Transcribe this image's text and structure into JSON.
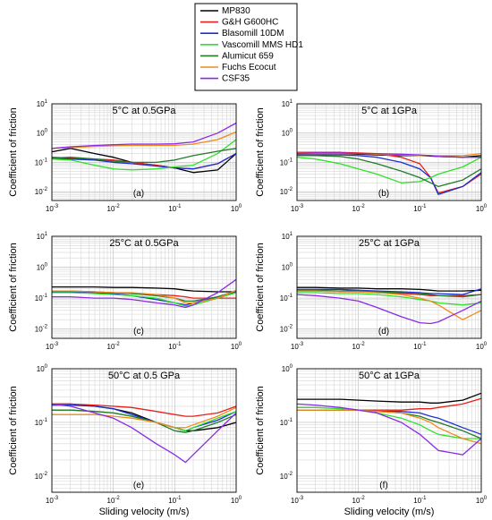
{
  "legend": {
    "placement": "top-center",
    "entries": [
      {
        "name": "MP830",
        "color": "#000000"
      },
      {
        "name": "G&H G600HC",
        "color": "#e8201b"
      },
      {
        "name": "Blasomill 10DM",
        "color": "#1a2fd0"
      },
      {
        "name": "Vascomill MMS HD1",
        "color": "#2fe02a"
      },
      {
        "name": "Alumicut 659",
        "color": "#237a2a"
      },
      {
        "name": "Fuchs Ecocut",
        "color": "#f08a1e"
      },
      {
        "name": "CSF35",
        "color": "#8a2ae6"
      }
    ]
  },
  "labels": {
    "ylabel": "Coefficient of friction",
    "xlabel": "Sliding velocity (m/s)"
  },
  "chart_data": [
    {
      "type": "line",
      "panel": "(a)",
      "title": "5°C at 0.5GPa",
      "xscale": "log",
      "yscale": "log",
      "xlim": [
        0.001,
        1
      ],
      "ylim": [
        0.005,
        10
      ],
      "grid": true,
      "x": [
        0.001,
        0.002,
        0.005,
        0.01,
        0.02,
        0.05,
        0.1,
        0.2,
        0.5,
        1
      ],
      "series": [
        {
          "name": "MP830",
          "values": [
            0.23,
            0.3,
            0.2,
            0.15,
            0.1,
            0.08,
            0.065,
            0.045,
            0.055,
            0.2
          ]
        },
        {
          "name": "G&H G600HC",
          "values": [
            0.15,
            0.14,
            0.13,
            0.12,
            0.1,
            0.08,
            0.065,
            0.06,
            0.09,
            0.2
          ]
        },
        {
          "name": "Blasomill 10DM",
          "values": [
            0.14,
            0.13,
            0.12,
            0.1,
            0.09,
            0.075,
            0.065,
            0.06,
            0.09,
            0.2
          ]
        },
        {
          "name": "Vascomill MMS HD1",
          "values": [
            0.13,
            0.12,
            0.08,
            0.06,
            0.055,
            0.06,
            0.07,
            0.08,
            0.2,
            0.6
          ]
        },
        {
          "name": "Alumicut 659",
          "values": [
            0.14,
            0.15,
            0.13,
            0.11,
            0.1,
            0.1,
            0.12,
            0.17,
            0.24,
            0.3
          ]
        },
        {
          "name": "Fuchs Ecocut",
          "values": [
            0.3,
            0.32,
            0.35,
            0.37,
            0.38,
            0.38,
            0.38,
            0.42,
            0.6,
            1.1
          ]
        },
        {
          "name": "CSF35",
          "values": [
            0.3,
            0.34,
            0.38,
            0.4,
            0.42,
            0.42,
            0.43,
            0.5,
            1.0,
            2.2
          ]
        }
      ]
    },
    {
      "type": "line",
      "panel": "(b)",
      "title": "5°C at 1GPa",
      "xscale": "log",
      "yscale": "log",
      "xlim": [
        0.001,
        1
      ],
      "ylim": [
        0.005,
        10
      ],
      "grid": true,
      "x": [
        0.001,
        0.002,
        0.005,
        0.01,
        0.02,
        0.05,
        0.1,
        0.15,
        0.2,
        0.5,
        1
      ],
      "series": [
        {
          "name": "MP830",
          "values": [
            0.2,
            0.2,
            0.2,
            0.19,
            0.18,
            0.17,
            0.17,
            0.165,
            0.16,
            0.15,
            0.17
          ]
        },
        {
          "name": "G&H G600HC",
          "values": [
            0.22,
            0.22,
            0.22,
            0.21,
            0.2,
            0.15,
            0.09,
            0.03,
            0.009,
            0.015,
            0.04
          ]
        },
        {
          "name": "Blasomill 10DM",
          "values": [
            0.18,
            0.18,
            0.18,
            0.17,
            0.15,
            0.1,
            0.06,
            0.03,
            0.008,
            0.015,
            0.045
          ]
        },
        {
          "name": "Vascomill MMS HD1",
          "values": [
            0.15,
            0.13,
            0.09,
            0.06,
            0.04,
            0.02,
            0.022,
            0.03,
            0.04,
            0.07,
            0.15
          ]
        },
        {
          "name": "Alumicut 659",
          "values": [
            0.17,
            0.17,
            0.16,
            0.13,
            0.09,
            0.05,
            0.03,
            0.02,
            0.015,
            0.025,
            0.06
          ]
        },
        {
          "name": "Fuchs Ecocut",
          "values": [
            0.2,
            0.2,
            0.2,
            0.2,
            0.19,
            0.18,
            0.17,
            0.17,
            0.17,
            0.17,
            0.2
          ]
        },
        {
          "name": "CSF35",
          "values": [
            0.2,
            0.21,
            0.21,
            0.2,
            0.2,
            0.19,
            0.18,
            0.17,
            0.16,
            0.15,
            0.15
          ]
        }
      ]
    },
    {
      "type": "line",
      "panel": "(c)",
      "title": "25°C at 0.5GPa",
      "xscale": "log",
      "yscale": "log",
      "xlim": [
        0.001,
        1
      ],
      "ylim": [
        0.005,
        10
      ],
      "grid": true,
      "x": [
        0.001,
        0.002,
        0.005,
        0.01,
        0.02,
        0.05,
        0.1,
        0.15,
        0.2,
        0.5,
        1
      ],
      "series": [
        {
          "name": "MP830",
          "values": [
            0.23,
            0.23,
            0.23,
            0.22,
            0.22,
            0.21,
            0.2,
            0.18,
            0.17,
            0.16,
            0.16
          ]
        },
        {
          "name": "G&H G600HC",
          "values": [
            0.16,
            0.16,
            0.15,
            0.15,
            0.14,
            0.13,
            0.12,
            0.11,
            0.1,
            0.1,
            0.1
          ]
        },
        {
          "name": "Blasomill 10DM",
          "values": [
            0.16,
            0.16,
            0.15,
            0.14,
            0.12,
            0.09,
            0.07,
            0.06,
            0.07,
            0.11,
            0.16
          ]
        },
        {
          "name": "Vascomill MMS HD1",
          "values": [
            0.15,
            0.15,
            0.14,
            0.13,
            0.12,
            0.1,
            0.07,
            0.055,
            0.06,
            0.1,
            0.15
          ]
        },
        {
          "name": "Alumicut 659",
          "values": [
            0.17,
            0.17,
            0.16,
            0.15,
            0.14,
            0.12,
            0.1,
            0.08,
            0.08,
            0.11,
            0.17
          ]
        },
        {
          "name": "Fuchs Ecocut",
          "values": [
            0.17,
            0.17,
            0.16,
            0.15,
            0.15,
            0.13,
            0.1,
            0.07,
            0.07,
            0.1,
            0.18
          ]
        },
        {
          "name": "CSF35",
          "values": [
            0.11,
            0.11,
            0.1,
            0.1,
            0.09,
            0.07,
            0.06,
            0.05,
            0.06,
            0.15,
            0.4
          ]
        }
      ]
    },
    {
      "type": "line",
      "panel": "(d)",
      "title": "25°C at 1GPa",
      "xscale": "log",
      "yscale": "log",
      "xlim": [
        0.001,
        1
      ],
      "ylim": [
        0.005,
        10
      ],
      "grid": true,
      "x": [
        0.001,
        0.002,
        0.005,
        0.01,
        0.02,
        0.05,
        0.1,
        0.15,
        0.2,
        0.5,
        1
      ],
      "series": [
        {
          "name": "MP830",
          "values": [
            0.22,
            0.22,
            0.21,
            0.21,
            0.2,
            0.2,
            0.19,
            0.18,
            0.17,
            0.17,
            0.18
          ]
        },
        {
          "name": "G&H G600HC",
          "values": [
            0.17,
            0.17,
            0.16,
            0.16,
            0.15,
            0.14,
            0.13,
            0.12,
            0.12,
            0.12,
            0.13
          ]
        },
        {
          "name": "Blasomill 10DM",
          "values": [
            0.19,
            0.19,
            0.19,
            0.18,
            0.17,
            0.16,
            0.15,
            0.14,
            0.14,
            0.13,
            0.2
          ]
        },
        {
          "name": "Vascomill MMS HD1",
          "values": [
            0.15,
            0.15,
            0.14,
            0.14,
            0.13,
            0.11,
            0.09,
            0.08,
            0.07,
            0.06,
            0.07
          ]
        },
        {
          "name": "Alumicut 659",
          "values": [
            0.18,
            0.18,
            0.17,
            0.17,
            0.16,
            0.15,
            0.14,
            0.13,
            0.12,
            0.11,
            0.13
          ]
        },
        {
          "name": "Fuchs Ecocut",
          "values": [
            0.17,
            0.17,
            0.16,
            0.16,
            0.15,
            0.13,
            0.1,
            0.08,
            0.06,
            0.02,
            0.04
          ]
        },
        {
          "name": "CSF35",
          "values": [
            0.13,
            0.12,
            0.1,
            0.08,
            0.05,
            0.025,
            0.016,
            0.015,
            0.017,
            0.04,
            0.08
          ]
        }
      ]
    },
    {
      "type": "line",
      "panel": "(e)",
      "title": "50°C at 0.5 GPa",
      "xscale": "log",
      "yscale": "log",
      "xlim": [
        0.001,
        1
      ],
      "ylim": [
        0.005,
        1
      ],
      "grid": true,
      "x": [
        0.001,
        0.002,
        0.005,
        0.01,
        0.02,
        0.05,
        0.1,
        0.15,
        0.2,
        0.5,
        1
      ],
      "series": [
        {
          "name": "MP830",
          "values": [
            0.22,
            0.22,
            0.2,
            0.18,
            0.15,
            0.1,
            0.08,
            0.07,
            0.07,
            0.08,
            0.1
          ]
        },
        {
          "name": "G&H G600HC",
          "values": [
            0.22,
            0.22,
            0.21,
            0.2,
            0.19,
            0.16,
            0.14,
            0.13,
            0.13,
            0.15,
            0.2
          ]
        },
        {
          "name": "Blasomill 10DM",
          "values": [
            0.21,
            0.21,
            0.2,
            0.18,
            0.14,
            0.1,
            0.08,
            0.07,
            0.08,
            0.11,
            0.16
          ]
        },
        {
          "name": "Vascomill MMS HD1",
          "values": [
            0.17,
            0.17,
            0.16,
            0.15,
            0.13,
            0.1,
            0.08,
            0.07,
            0.08,
            0.12,
            0.16
          ]
        },
        {
          "name": "Alumicut 659",
          "values": [
            0.17,
            0.17,
            0.16,
            0.15,
            0.13,
            0.1,
            0.07,
            0.065,
            0.07,
            0.1,
            0.14
          ]
        },
        {
          "name": "Fuchs Ecocut",
          "values": [
            0.14,
            0.14,
            0.14,
            0.13,
            0.12,
            0.1,
            0.08,
            0.08,
            0.09,
            0.13,
            0.19
          ]
        },
        {
          "name": "CSF35",
          "values": [
            0.22,
            0.2,
            0.15,
            0.12,
            0.08,
            0.04,
            0.025,
            0.018,
            0.025,
            0.07,
            0.15
          ]
        }
      ]
    },
    {
      "type": "line",
      "panel": "(f)",
      "title": "50°C at 1GPa",
      "xscale": "log",
      "yscale": "log",
      "xlim": [
        0.001,
        1
      ],
      "ylim": [
        0.005,
        1
      ],
      "grid": true,
      "x": [
        0.001,
        0.002,
        0.005,
        0.01,
        0.02,
        0.05,
        0.1,
        0.15,
        0.2,
        0.5,
        1
      ],
      "series": [
        {
          "name": "MP830",
          "values": [
            0.27,
            0.27,
            0.27,
            0.26,
            0.25,
            0.24,
            0.24,
            0.23,
            0.23,
            0.26,
            0.35
          ]
        },
        {
          "name": "G&H G600HC",
          "values": [
            0.17,
            0.17,
            0.17,
            0.17,
            0.17,
            0.17,
            0.18,
            0.18,
            0.19,
            0.22,
            0.28
          ]
        },
        {
          "name": "Blasomill 10DM",
          "values": [
            0.17,
            0.17,
            0.17,
            0.17,
            0.16,
            0.16,
            0.15,
            0.13,
            0.12,
            0.08,
            0.06
          ]
        },
        {
          "name": "Vascomill MMS HD1",
          "values": [
            0.19,
            0.19,
            0.18,
            0.17,
            0.15,
            0.12,
            0.09,
            0.07,
            0.06,
            0.05,
            0.05
          ]
        },
        {
          "name": "Alumicut 659",
          "values": [
            0.17,
            0.17,
            0.17,
            0.17,
            0.16,
            0.15,
            0.13,
            0.11,
            0.1,
            0.07,
            0.05
          ]
        },
        {
          "name": "Fuchs Ecocut",
          "values": [
            0.17,
            0.17,
            0.17,
            0.17,
            0.16,
            0.15,
            0.12,
            0.1,
            0.08,
            0.05,
            0.04
          ]
        },
        {
          "name": "CSF35",
          "values": [
            0.22,
            0.21,
            0.19,
            0.17,
            0.15,
            0.1,
            0.06,
            0.04,
            0.03,
            0.025,
            0.05
          ]
        }
      ]
    }
  ]
}
